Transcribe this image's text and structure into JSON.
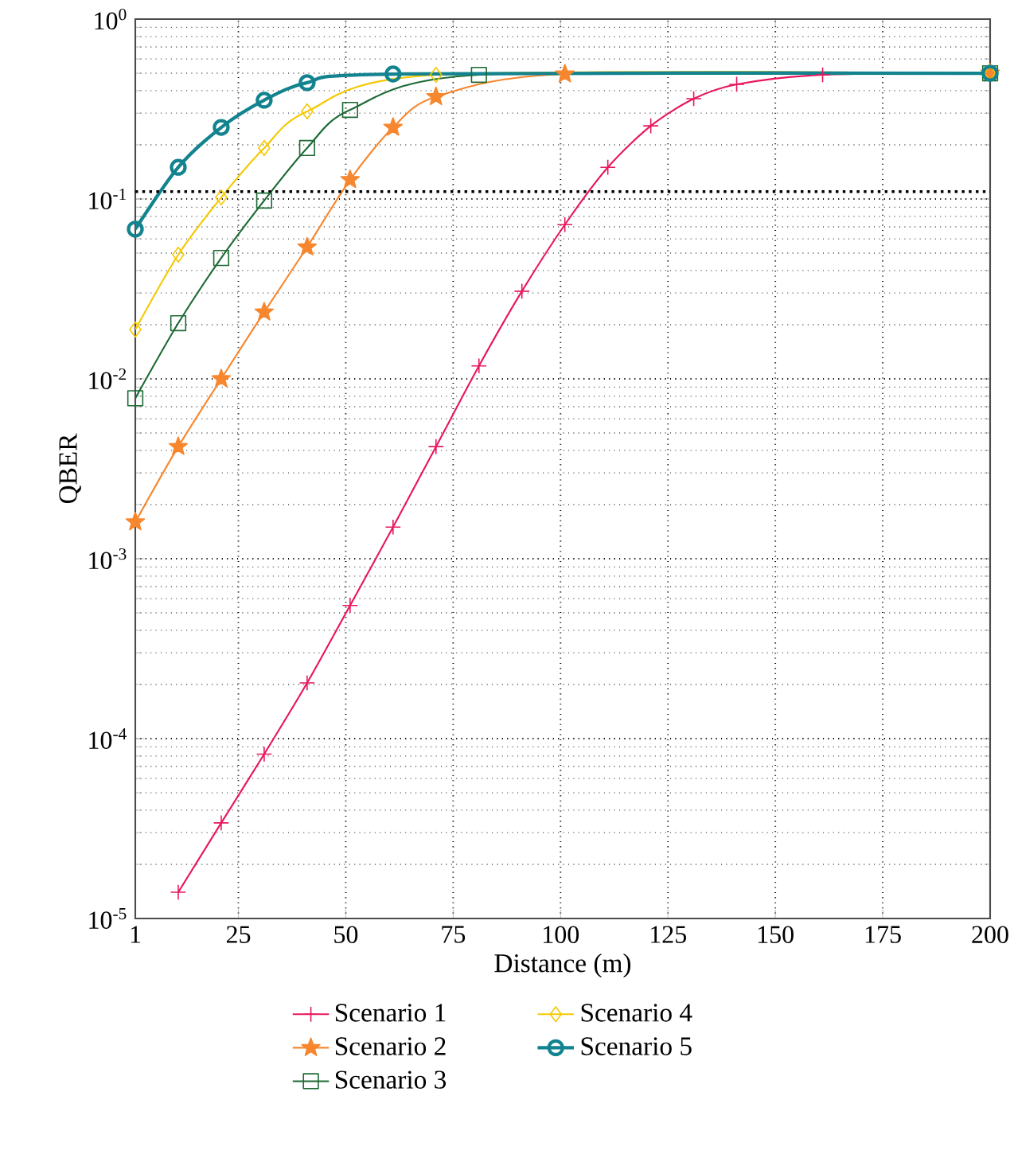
{
  "chart_data": {
    "type": "line",
    "xlabel": "Distance (m)",
    "ylabel": "QBER",
    "log": "y",
    "grid": true,
    "legend": "bottom",
    "xlim": [
      1,
      200
    ],
    "xticks": [
      1,
      25,
      50,
      75,
      100,
      125,
      150,
      175,
      200
    ],
    "ylim": [
      1e-05,
      1
    ],
    "yticks": [
      {
        "value": 1e-05,
        "label": "10$^{-5}$"
      },
      {
        "value": 0.0001,
        "label": "10$^{-4}$"
      },
      {
        "value": 0.001,
        "label": "10$^{-3}$"
      },
      {
        "value": 0.01,
        "label": "10$^{-2}$"
      },
      {
        "value": 0.1,
        "label": "10$^{-1}$"
      },
      {
        "value": 1,
        "label": "10$^{0}$"
      }
    ],
    "ref_lines": [
      {
        "axis": "y",
        "value": 0.11,
        "color": "#000000",
        "line_style": "dotted"
      }
    ],
    "series": [
      {
        "name": "Scenario 1",
        "color": "#e8175d",
        "marker": "cross",
        "x": [
          11,
          21,
          31,
          41,
          51,
          61,
          71,
          81,
          91,
          101,
          111,
          121,
          131,
          141,
          161,
          200
        ],
        "values": [
          1.4e-05,
          3.4e-05,
          8.2e-05,
          0.000204,
          0.00055,
          0.0015,
          0.0042,
          0.0118,
          0.0307,
          0.072,
          0.15,
          0.255,
          0.361,
          0.434,
          0.49,
          0.5
        ]
      },
      {
        "name": "Scenario 2",
        "color": "#f7872e",
        "marker": "star",
        "x": [
          1,
          11,
          21,
          31,
          41,
          51,
          61,
          71,
          101,
          200
        ],
        "values": [
          0.0016,
          0.0042,
          0.01,
          0.0235,
          0.054,
          0.128,
          0.25,
          0.37,
          0.495,
          0.5
        ]
      },
      {
        "name": "Scenario 3",
        "color": "#1e6b35",
        "marker": "square",
        "x": [
          1,
          11,
          21,
          31,
          41,
          51,
          81,
          200
        ],
        "values": [
          0.0078,
          0.0204,
          0.047,
          0.098,
          0.192,
          0.313,
          0.49,
          0.5
        ]
      },
      {
        "name": "Scenario 4",
        "color": "#f5c800",
        "marker": "diamond",
        "x": [
          1,
          11,
          21,
          31,
          41,
          71,
          200
        ],
        "values": [
          0.0188,
          0.049,
          0.102,
          0.192,
          0.307,
          0.49,
          0.5
        ]
      },
      {
        "name": "Scenario 5",
        "color": "#12838f",
        "marker": "circle",
        "x": [
          1,
          11,
          21,
          31,
          41,
          61,
          200
        ],
        "values": [
          0.068,
          0.15,
          0.25,
          0.354,
          0.443,
          0.495,
          0.5
        ]
      }
    ]
  }
}
